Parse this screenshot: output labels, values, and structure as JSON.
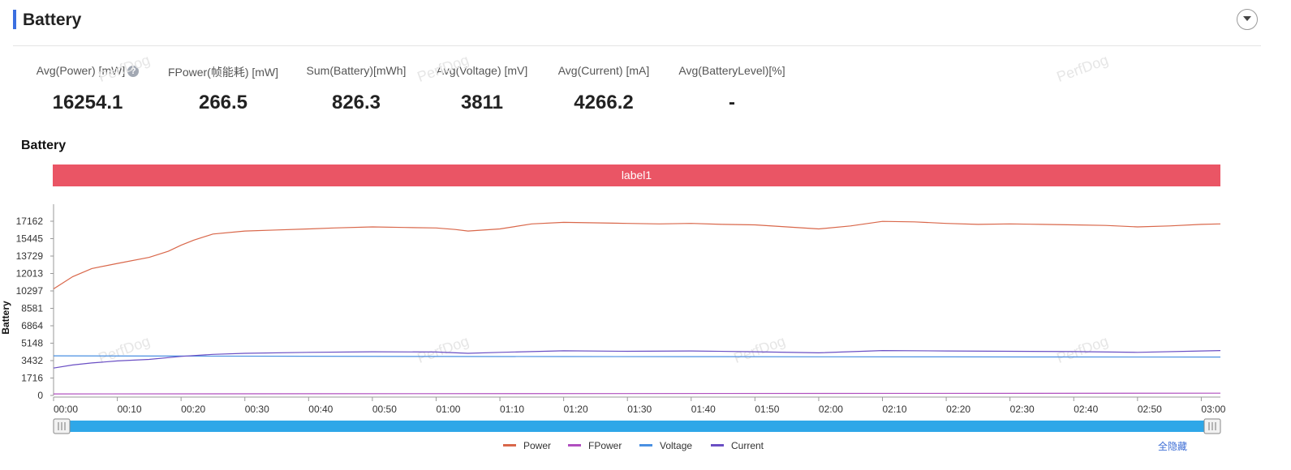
{
  "header": {
    "title": "Battery"
  },
  "stats": [
    {
      "label": "Avg(Power) [mW]",
      "value": "16254.1",
      "help": "?"
    },
    {
      "label": "FPower(帧能耗) [mW]",
      "value": "266.5"
    },
    {
      "label": "Sum(Battery)[mWh]",
      "value": "826.3"
    },
    {
      "label": "Avg(Voltage) [mV]",
      "value": "3811"
    },
    {
      "label": "Avg(Current) [mA]",
      "value": "4266.2"
    },
    {
      "label": "Avg(BatteryLevel)[%]",
      "value": "-"
    }
  ],
  "watermark": "PerfDog",
  "hide_all_label": "全隐藏",
  "colors": {
    "accent": "#3b6fe0",
    "label_band": "#ea5565",
    "slider": "#2ea7e8"
  },
  "chart_data": {
    "type": "line",
    "title": "Battery",
    "ylabel": "Battery",
    "xlabel": "",
    "label_band": "label1",
    "ylim": [
      0,
      17162
    ],
    "yticks": [
      0,
      1716,
      3432,
      5148,
      6864,
      8581,
      10297,
      12013,
      13729,
      15445,
      17162
    ],
    "xlim": [
      0,
      183
    ],
    "xticks": [
      {
        "t": 0,
        "label": "00:00"
      },
      {
        "t": 10,
        "label": "00:10"
      },
      {
        "t": 20,
        "label": "00:20"
      },
      {
        "t": 30,
        "label": "00:30"
      },
      {
        "t": 40,
        "label": "00:40"
      },
      {
        "t": 50,
        "label": "00:50"
      },
      {
        "t": 60,
        "label": "01:00"
      },
      {
        "t": 70,
        "label": "01:10"
      },
      {
        "t": 80,
        "label": "01:20"
      },
      {
        "t": 90,
        "label": "01:30"
      },
      {
        "t": 100,
        "label": "01:40"
      },
      {
        "t": 110,
        "label": "01:50"
      },
      {
        "t": 120,
        "label": "02:00"
      },
      {
        "t": 130,
        "label": "02:10"
      },
      {
        "t": 140,
        "label": "02:20"
      },
      {
        "t": 150,
        "label": "02:30"
      },
      {
        "t": 160,
        "label": "02:40"
      },
      {
        "t": 170,
        "label": "02:50"
      },
      {
        "t": 180,
        "label": "03:00"
      }
    ],
    "legend_position": "bottom",
    "series": [
      {
        "name": "Power",
        "color": "#d9674a",
        "x": [
          0,
          3,
          6,
          10,
          15,
          18,
          20,
          22,
          25,
          30,
          35,
          40,
          44,
          50,
          55,
          60,
          63,
          65,
          70,
          75,
          80,
          85,
          90,
          95,
          100,
          105,
          110,
          115,
          120,
          125,
          130,
          135,
          140,
          145,
          150,
          155,
          160,
          165,
          170,
          175,
          180,
          183
        ],
        "y": [
          10500,
          11700,
          12500,
          13000,
          13600,
          14200,
          14800,
          15300,
          15900,
          16200,
          16300,
          16400,
          16500,
          16600,
          16550,
          16500,
          16350,
          16200,
          16400,
          16900,
          17050,
          17000,
          16950,
          16900,
          16950,
          16850,
          16800,
          16600,
          16400,
          16700,
          17150,
          17100,
          16950,
          16850,
          16900,
          16850,
          16800,
          16750,
          16600,
          16700,
          16850,
          16900
        ]
      },
      {
        "name": "FPower",
        "color": "#b04fbf",
        "x": [
          0,
          183
        ],
        "y": [
          150,
          220
        ]
      },
      {
        "name": "Voltage",
        "color": "#4a90e2",
        "x": [
          0,
          20,
          40,
          60,
          80,
          100,
          120,
          140,
          160,
          183
        ],
        "y": [
          3900,
          3880,
          3860,
          3840,
          3830,
          3820,
          3810,
          3800,
          3790,
          3780
        ]
      },
      {
        "name": "Current",
        "color": "#6a4fc4",
        "x": [
          0,
          3,
          6,
          10,
          15,
          20,
          25,
          30,
          40,
          50,
          60,
          65,
          70,
          80,
          90,
          100,
          110,
          120,
          130,
          140,
          150,
          160,
          170,
          180,
          183
        ],
        "y": [
          2700,
          3000,
          3200,
          3400,
          3550,
          3850,
          4050,
          4150,
          4250,
          4300,
          4280,
          4150,
          4250,
          4400,
          4350,
          4380,
          4300,
          4200,
          4420,
          4380,
          4350,
          4320,
          4250,
          4380,
          4420
        ]
      }
    ]
  }
}
